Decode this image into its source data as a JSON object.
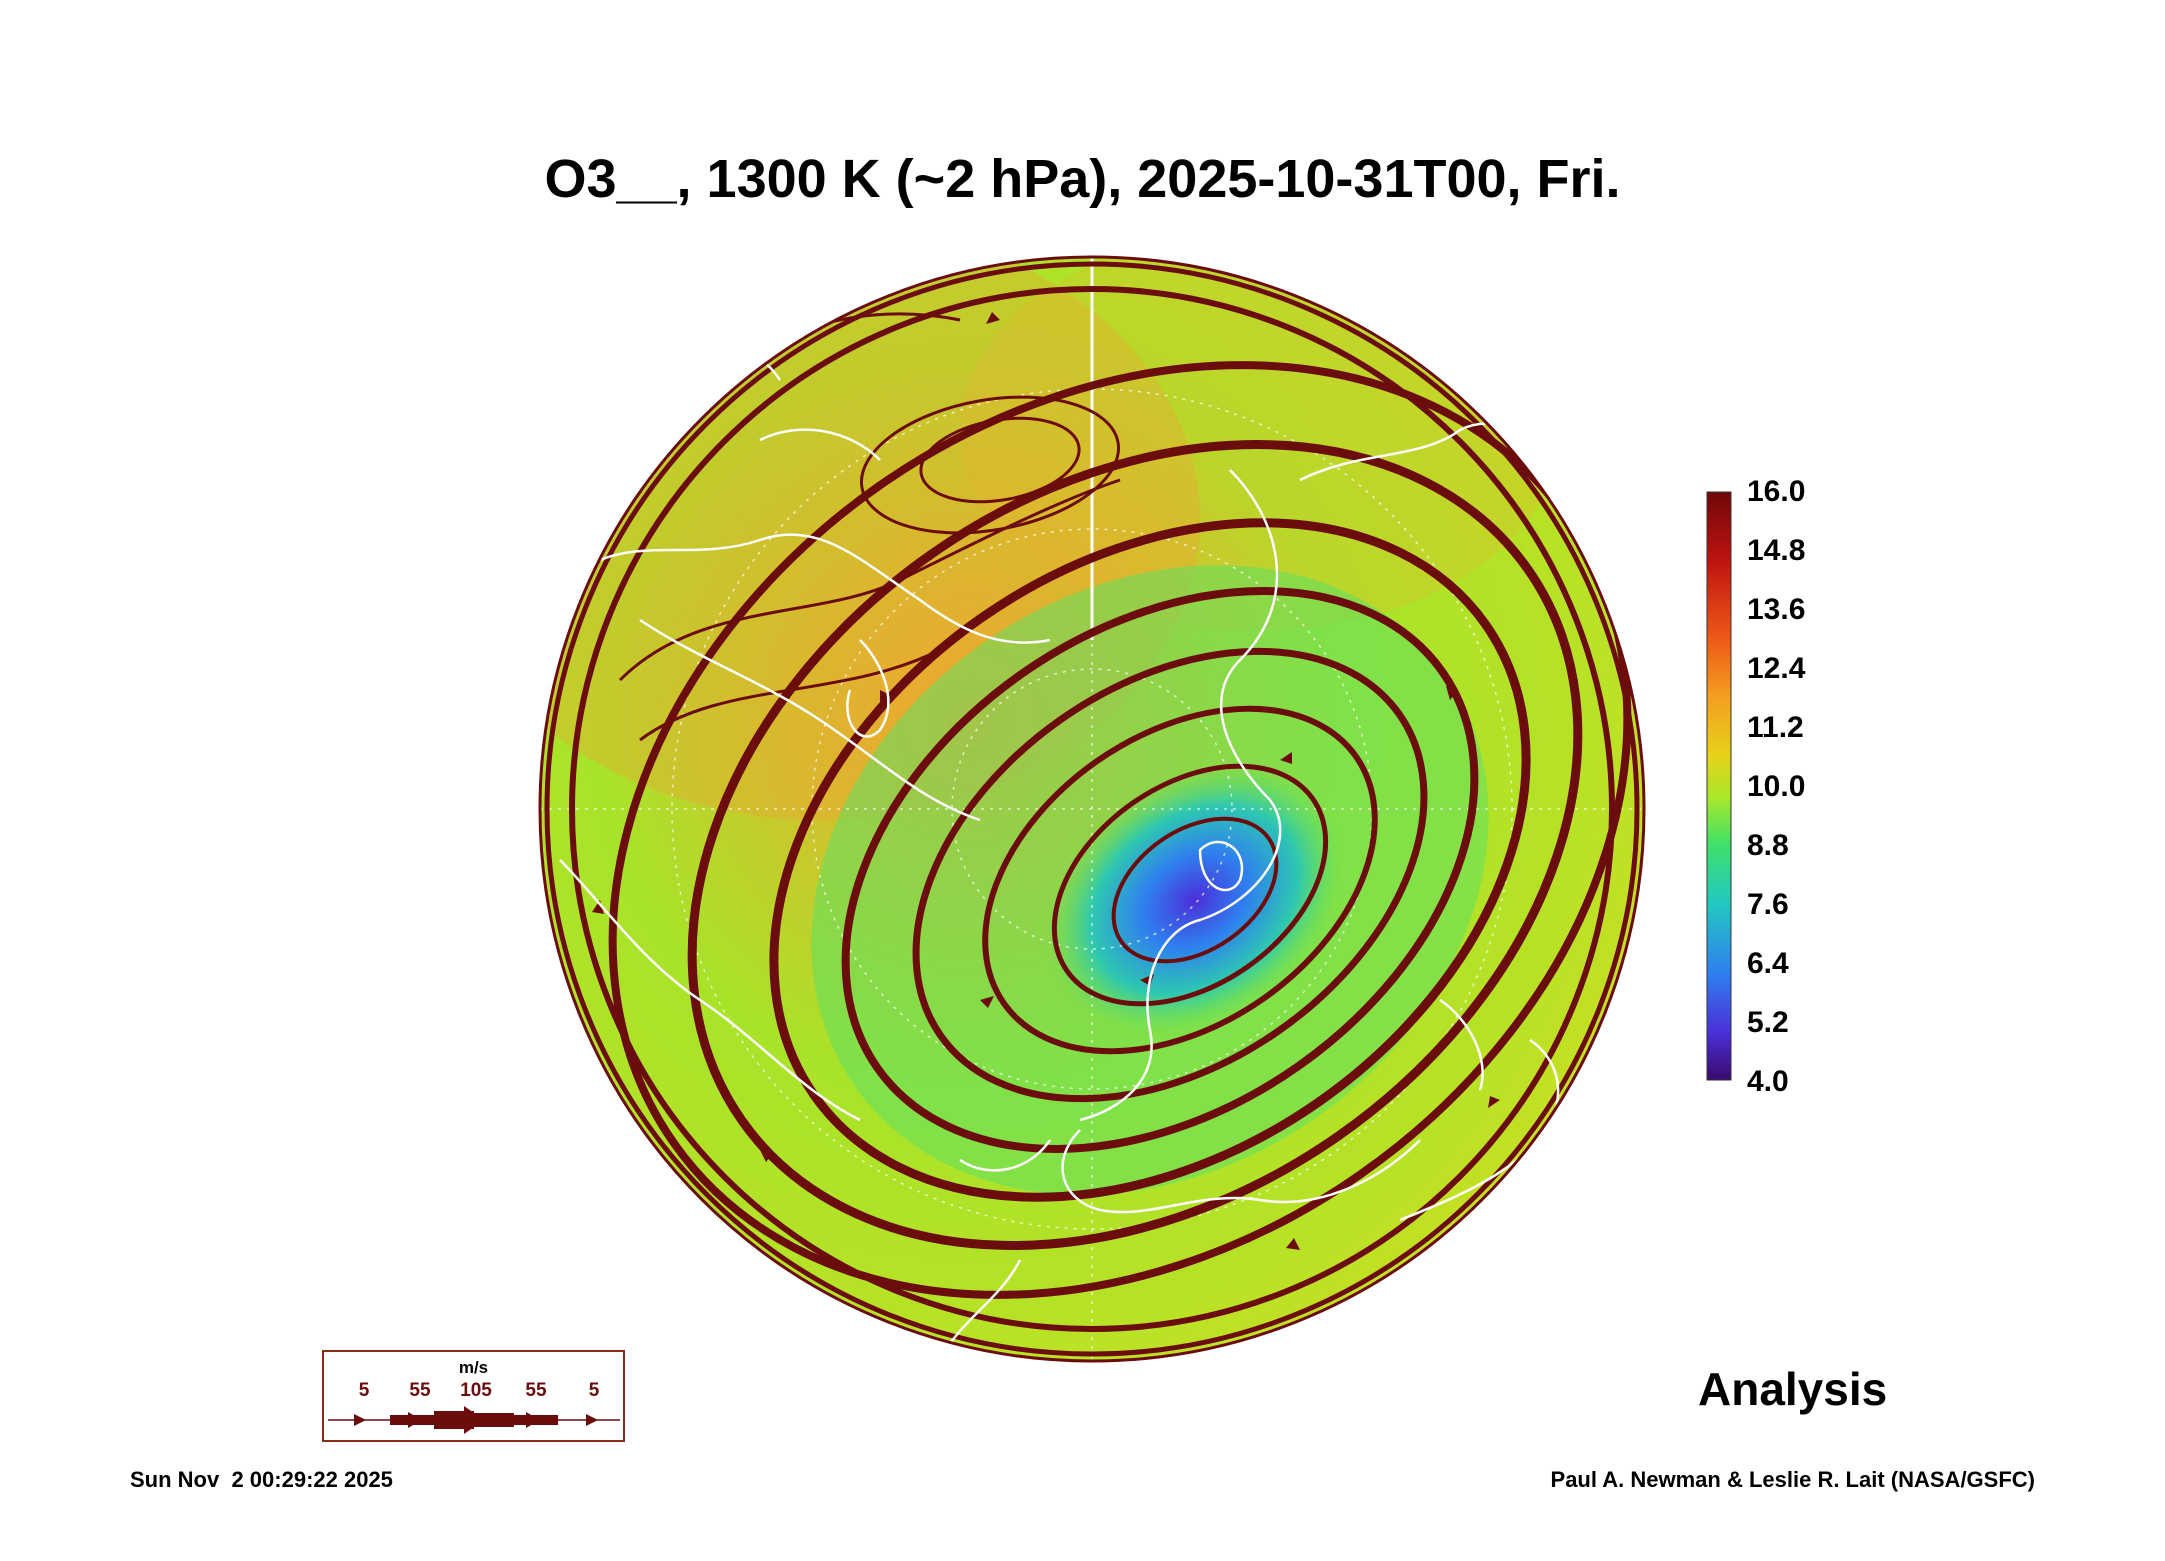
{
  "title": "O3__, 1300 K (~2 hPa), 2025-10-31T00, Fri.",
  "colorbar": {
    "labels": [
      "16.0",
      "14.8",
      "13.6",
      "12.4",
      "11.2",
      "10.0",
      "8.8",
      "7.6",
      "6.4",
      "5.2",
      "4.0"
    ],
    "colors": [
      "#3a0a6e",
      "#4a2fd6",
      "#2f7ff0",
      "#22c8c0",
      "#3fe06a",
      "#a8e82a",
      "#e6d21a",
      "#f4a020",
      "#ee5a18",
      "#c01410",
      "#6e0808"
    ]
  },
  "wind_legend": {
    "unit": "m/s",
    "speeds": [
      "5",
      "55",
      "105",
      "55",
      "5"
    ]
  },
  "analysis_label": "Analysis",
  "footer": {
    "timestamp": "Sun Nov  2 00:29:22 2025",
    "credit": "Paul A. Newman & Leslie R. Lait (NASA/GSFC)"
  },
  "map": {
    "projection": "orthographic-north-polar",
    "field": "ozone mixing ratio",
    "vortex_min_value": 4.0,
    "flow_color": "#6b0d0d",
    "coastline_color": "#ffffff"
  }
}
